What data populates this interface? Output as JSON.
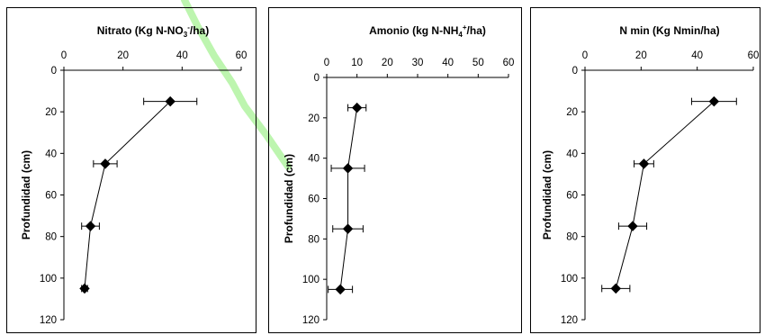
{
  "chart_data": [
    {
      "type": "scatter",
      "title": "Nitrato (Kg N-NO",
      "title_sub": "3",
      "title_sup": "-",
      "title_end": "/ha)",
      "ylabel": "Profundidad (cm)",
      "xlim": [
        0,
        60
      ],
      "ylim": [
        0,
        120
      ],
      "y_inverted": true,
      "x_axis_position": "top",
      "xticks": [
        0,
        20,
        40,
        60
      ],
      "yticks": [
        0,
        20,
        40,
        60,
        80,
        100,
        120
      ],
      "series": [
        {
          "marker": "diamond",
          "x": [
            36,
            14,
            9,
            7
          ],
          "y": [
            15,
            45,
            75,
            105
          ],
          "x_err": [
            9,
            4,
            3,
            1
          ]
        }
      ],
      "grid": false
    },
    {
      "type": "scatter",
      "title": "Amonio (kg N-NH",
      "title_sub": "4",
      "title_sup": "+",
      "title_end": "/ha)",
      "ylabel": "Profundidad (cm)",
      "xlim": [
        0,
        60
      ],
      "ylim": [
        0,
        120
      ],
      "y_inverted": true,
      "x_axis_position": "top",
      "xticks": [
        0,
        10,
        20,
        30,
        40,
        50,
        60
      ],
      "yticks": [
        0,
        20,
        40,
        60,
        80,
        100,
        120
      ],
      "series": [
        {
          "marker": "diamond",
          "x": [
            10,
            7,
            7,
            4.5
          ],
          "y": [
            15,
            45,
            75,
            105
          ],
          "x_err": [
            3,
            5.5,
            5,
            4
          ]
        }
      ],
      "grid": false
    },
    {
      "type": "scatter",
      "title": "N min (Kg Nmin/ha)",
      "ylabel": "Profundidad (cm)",
      "xlim": [
        0,
        60
      ],
      "ylim": [
        0,
        120
      ],
      "y_inverted": true,
      "x_axis_position": "top",
      "xticks": [
        0,
        20,
        40,
        60
      ],
      "yticks": [
        0,
        20,
        40,
        60,
        80,
        100,
        120
      ],
      "series": [
        {
          "marker": "diamond",
          "x": [
            46,
            21,
            17,
            11
          ],
          "y": [
            15,
            45,
            75,
            105
          ],
          "x_err": [
            8,
            3.5,
            5,
            5
          ]
        }
      ],
      "grid": false
    }
  ],
  "colors": {
    "marker": "#000000",
    "line": "#000000",
    "watermark": "#b6f4a6"
  }
}
